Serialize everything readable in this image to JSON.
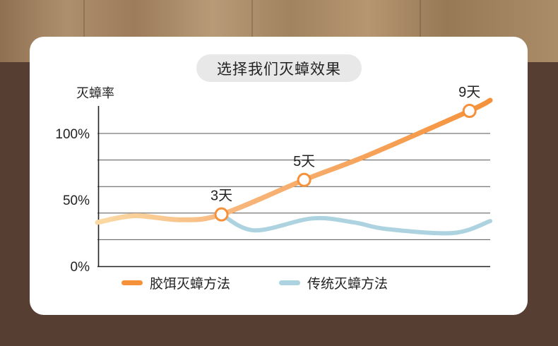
{
  "title": "选择我们灭蟑效果",
  "chart_data": {
    "type": "line",
    "title": "选择我们灭蟑效果",
    "ylabel": "灭蟑率",
    "xlabel": "",
    "y_ticks": [
      "100%",
      "50%",
      "0%"
    ],
    "ylim": [
      0,
      100
    ],
    "grid": true,
    "legend_position": "bottom",
    "series": [
      {
        "name": "胶饵灭蟑方法",
        "color": "#f5913a",
        "start_color": "#fbd9a4",
        "points": [
          {
            "x": 0,
            "y": 33
          },
          {
            "x": 0.9,
            "y": 38
          },
          {
            "x": 2.0,
            "y": 35
          },
          {
            "x": 3.0,
            "y": 39
          },
          {
            "x": 5.0,
            "y": 65
          },
          {
            "x": 6.5,
            "y": 83
          },
          {
            "x": 9.0,
            "y": 117
          },
          {
            "x": 9.5,
            "y": 125
          }
        ],
        "markers": [
          {
            "x": 3.0,
            "y": 39,
            "label": "3天"
          },
          {
            "x": 5.0,
            "y": 65,
            "label": "5天"
          },
          {
            "x": 9.0,
            "y": 117,
            "label": "9天"
          }
        ]
      },
      {
        "name": "传统灭蟑方法",
        "color": "#add3e0",
        "points": [
          {
            "x": 3.0,
            "y": 39
          },
          {
            "x": 3.8,
            "y": 27
          },
          {
            "x": 5.2,
            "y": 36
          },
          {
            "x": 6.2,
            "y": 33
          },
          {
            "x": 7.0,
            "y": 28
          },
          {
            "x": 8.6,
            "y": 25
          },
          {
            "x": 9.5,
            "y": 34
          }
        ]
      }
    ]
  }
}
